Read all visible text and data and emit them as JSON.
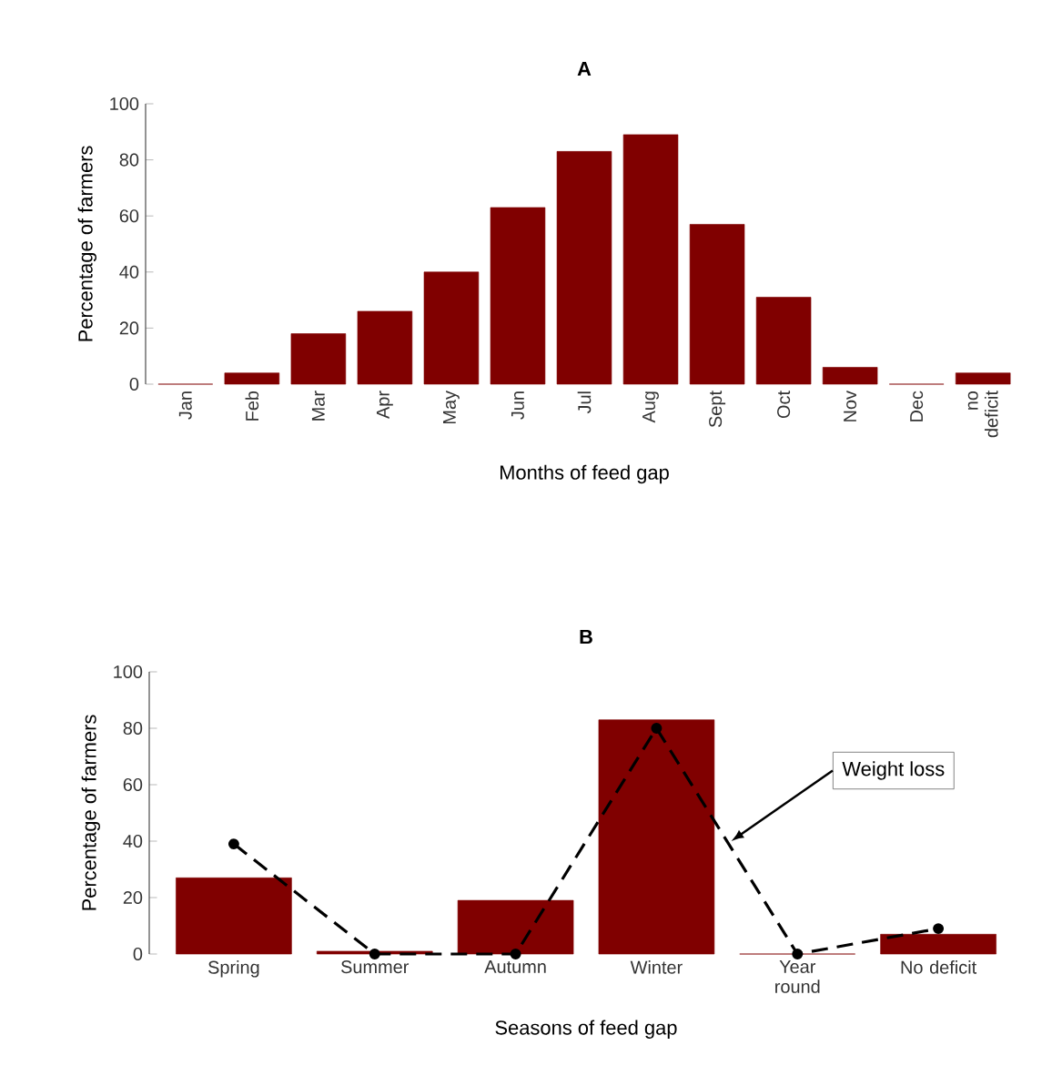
{
  "chart_data": [
    {
      "type": "bar",
      "title": "A",
      "xlabel": "Months of feed gap",
      "ylabel": "Percentage of farmers",
      "categories": [
        "Jan",
        "Feb",
        "Mar",
        "Apr",
        "May",
        "Jun",
        "Jul",
        "Aug",
        "Sept",
        "Oct",
        "Nov",
        "Dec",
        "no deficit"
      ],
      "series": [
        {
          "color": "#800000",
          "values": [
            0,
            4,
            18,
            26,
            40,
            63,
            83,
            89,
            57,
            31,
            6,
            0,
            4
          ]
        }
      ],
      "ylim": [
        0,
        100
      ],
      "yticks": [
        0,
        20,
        40,
        60,
        80,
        100
      ],
      "grid": false,
      "legend": false
    },
    {
      "type": "bar",
      "title": "B",
      "xlabel": "Seasons of feed gap",
      "ylabel": "Percentage of farmers",
      "categories": [
        "Spring",
        "Summer",
        "Autumn",
        "Winter",
        "Year round",
        "No deficit"
      ],
      "series": [
        {
          "color": "#800000",
          "values": [
            27,
            1,
            19,
            83,
            0,
            7
          ]
        },
        {
          "type": "line",
          "name": "Weight loss",
          "color": "#000000",
          "values": [
            39,
            0,
            0,
            80,
            0,
            9
          ]
        }
      ],
      "ylim": [
        0,
        100
      ],
      "yticks": [
        0,
        20,
        40,
        60,
        80,
        100
      ],
      "grid": false,
      "legend": false,
      "marker": "circle",
      "line_style": "dashed"
    }
  ]
}
